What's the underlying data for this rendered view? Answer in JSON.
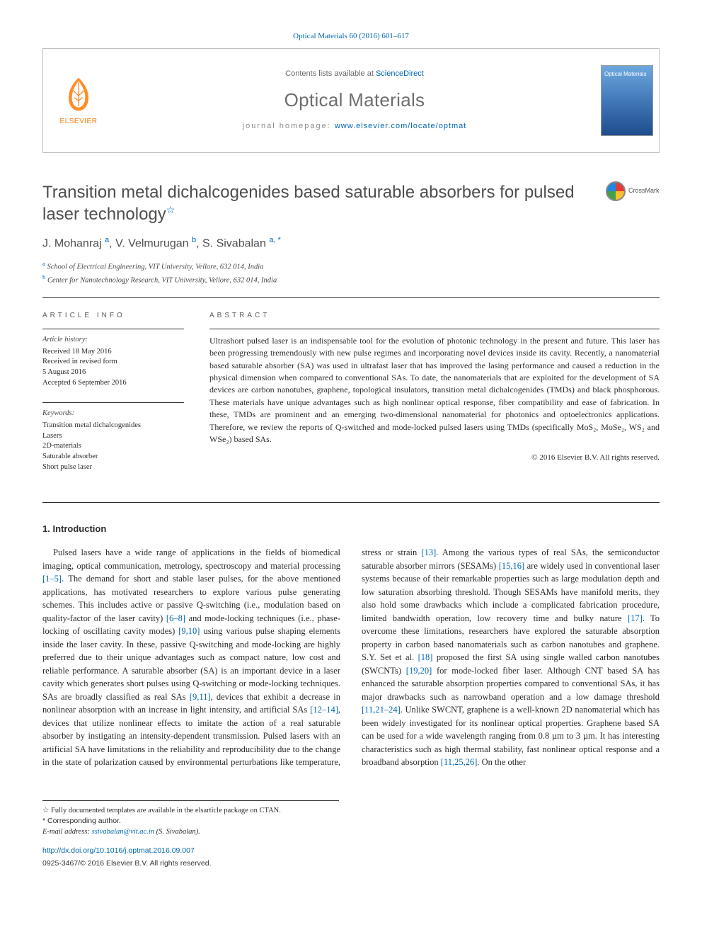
{
  "citation": "Optical Materials 60 (2016) 601–617",
  "header": {
    "contents_prefix": "Contents lists available at ",
    "contents_link": "ScienceDirect",
    "journal_name": "Optical Materials",
    "homepage_label": "journal homepage: ",
    "homepage_url": "www.elsevier.com/locate/optmat",
    "publisher_label": "ELSEVIER"
  },
  "crossmark_label": "CrossMark",
  "title": "Transition metal dichalcogenides based saturable absorbers for pulsed laser technology",
  "title_star": "☆",
  "authors_html": {
    "a1_name": "J. Mohanraj",
    "a1_aff": "a",
    "a2_name": "V. Velmurugan",
    "a2_aff": "b",
    "a3_name": "S. Sivabalan",
    "a3_aff": "a, *",
    "sep": ", "
  },
  "affiliations": {
    "a": "School of Electrical Engineering, VIT University, Vellore, 632 014, India",
    "b": "Center for Nanotechnology Research, VIT University, Vellore, 632 014, India"
  },
  "article_info": {
    "heading": "ARTICLE INFO",
    "history_label": "Article history:",
    "received": "Received 18 May 2016",
    "revised1": "Received in revised form",
    "revised2": "5 August 2016",
    "accepted": "Accepted 6 September 2016",
    "keywords_label": "Keywords:",
    "keywords": [
      "Transition metal dichalcogenides",
      "Lasers",
      "2D-materials",
      "Saturable absorber",
      "Short pulse laser"
    ]
  },
  "abstract": {
    "heading": "ABSTRACT",
    "text": "Ultrashort pulsed laser is an indispensable tool for the evolution of photonic technology in the present and future. This laser has been progressing tremendously with new pulse regimes and incorporating novel devices inside its cavity. Recently, a nanomaterial based saturable absorber (SA) was used in ultrafast laser that has improved the lasing performance and caused a reduction in the physical dimension when compared to conventional SAs. To date, the nanomaterials that are exploited for the development of SA devices are carbon nanotubes, graphene, topological insulators, transition metal dichalcogenides (TMDs) and black phosphorous. These materials have unique advantages such as high nonlinear optical response, fiber compatibility and ease of fabrication. In these, TMDs are prominent and an emerging two-dimensional nanomaterial for photonics and optoelectronics applications. Therefore, we review the reports of Q-switched and mode-locked pulsed lasers using TMDs (specifically MoS₂, MoSe₂, WS₂ and WSe₂) based SAs.",
    "copyright": "© 2016 Elsevier B.V. All rights reserved."
  },
  "section1": {
    "heading": "1. Introduction",
    "para": "Pulsed lasers have a wide range of applications in the fields of biomedical imaging, optical communication, metrology, spectroscopy and material processing [1–5]. The demand for short and stable laser pulses, for the above mentioned applications, has motivated researchers to explore various pulse generating schemes. This includes active or passive Q-switching (i.e., modulation based on quality-factor of the laser cavity) [6–8] and mode-locking techniques (i.e., phase-locking of oscillating cavity modes) [9,10] using various pulse shaping elements inside the laser cavity. In these, passive Q-switching and mode-locking are highly preferred due to their unique advantages such as compact nature, low cost and reliable performance. A saturable absorber (SA) is an important device in a laser cavity which generates short pulses using Q-switching or mode-locking techniques. SAs are broadly classified as real SAs [9,11], devices that exhibit a decrease in nonlinear absorption with an increase in light intensity, and artificial SAs [12–14], devices that utilize nonlinear effects to imitate the action of a real saturable absorber by instigating an intensity-dependent transmission. Pulsed lasers with an artificial SA have limitations in the reliability and reproducibility due to the change in the state of polarization caused by environmental perturbations like temperature, stress or strain [13]. Among the various types of real SAs, the semiconductor saturable absorber mirrors (SESAMs) [15,16] are widely used in conventional laser systems because of their remarkable properties such as large modulation depth and low saturation absorbing threshold. Though SESAMs have manifold merits, they also hold some drawbacks which include a complicated fabrication procedure, limited bandwidth operation, low recovery time and bulky nature [17]. To overcome these limitations, researchers have explored the saturable absorption property in carbon based nanomaterials such as carbon nanotubes and graphene. S.Y. Set et al. [18] proposed the first SA using single walled carbon nanotubes (SWCNTs) [19,20] for mode-locked fiber laser. Although CNT based SA has enhanced the saturable absorption properties compared to conventional SAs, it has major drawbacks such as narrowband operation and a low damage threshold [11,21–24]. Unlike SWCNT, graphene is a well-known 2D nanomaterial which has been widely investigated for its nonlinear optical properties. Graphene based SA can be used for a wide wavelength ranging from 0.8 µm to 3 µm. It has interesting characteristics such as high thermal stability, fast nonlinear optical response and a broadband absorption [11,25,26]. On the other"
  },
  "footnotes": {
    "star": "☆ Fully documented templates are available in the elsarticle package on CTAN.",
    "corr": "* Corresponding author.",
    "email_label": "E-mail address: ",
    "email": "ssivabalan@vit.ac.in",
    "email_suffix": " (S. Sivabalan)."
  },
  "doi": {
    "url": "http://dx.doi.org/10.1016/j.optmat.2016.09.007",
    "issn": "0925-3467/© 2016 Elsevier B.V. All rights reserved."
  },
  "colors": {
    "link": "#0066b3",
    "orange": "#ff7a00",
    "gray_text": "#6e6e6e"
  }
}
